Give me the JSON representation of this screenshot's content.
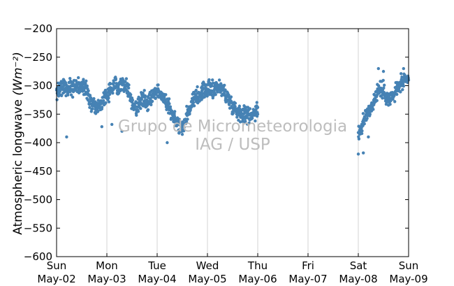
{
  "chart_data": {
    "type": "scatter",
    "ylabel": "Atmospheric longwave",
    "ylabel_unit": "(Wm⁻²)",
    "ylim": [
      -600,
      -200
    ],
    "yticks": [
      -200,
      -250,
      -300,
      -350,
      -400,
      -450,
      -500,
      -550,
      -600
    ],
    "x_range_days": [
      0,
      7
    ],
    "xticks": [
      {
        "day": "Sun",
        "date": "May-02"
      },
      {
        "day": "Mon",
        "date": "May-03"
      },
      {
        "day": "Tue",
        "date": "May-04"
      },
      {
        "day": "Wed",
        "date": "May-05"
      },
      {
        "day": "Thu",
        "date": "May-06"
      },
      {
        "day": "Fri",
        "date": "May-07"
      },
      {
        "day": "Sat",
        "date": "May-08"
      },
      {
        "day": "Sun",
        "date": "May-09"
      }
    ],
    "grid": "vertical",
    "marker_color": "#4682b4",
    "series": [
      {
        "x": [
          0.0,
          0.1,
          0.2,
          0.3,
          0.4,
          0.5,
          0.6,
          0.7,
          0.8,
          0.9,
          1.0,
          1.1,
          1.2,
          1.3,
          1.4,
          1.5,
          1.6,
          1.7,
          1.8,
          1.9,
          2.0,
          2.1,
          2.2,
          2.3,
          2.4,
          2.5,
          2.6,
          2.7,
          2.8,
          2.9,
          3.0,
          3.1,
          3.2,
          3.3,
          3.4,
          3.5,
          3.6,
          3.7,
          3.8,
          3.9,
          4.0
        ],
        "y": [
          -315,
          -300,
          -305,
          -300,
          -302,
          -300,
          -310,
          -335,
          -340,
          -330,
          -315,
          -305,
          -300,
          -295,
          -300,
          -330,
          -340,
          -320,
          -330,
          -318,
          -310,
          -318,
          -330,
          -350,
          -365,
          -375,
          -350,
          -330,
          -320,
          -310,
          -305,
          -310,
          -300,
          -308,
          -320,
          -335,
          -345,
          -348,
          -352,
          -350,
          -340
        ]
      },
      {
        "x": [
          6.0,
          6.1,
          6.2,
          6.3,
          6.4,
          6.5,
          6.6,
          6.7,
          6.8,
          6.9,
          7.0
        ],
        "y": [
          -385,
          -365,
          -345,
          -330,
          -305,
          -310,
          -325,
          -318,
          -300,
          -295,
          -288
        ]
      }
    ],
    "outliers": [
      [
        0.2,
        -390
      ],
      [
        0.9,
        -372
      ],
      [
        1.1,
        -368
      ],
      [
        1.3,
        -380
      ],
      [
        2.2,
        -400
      ],
      [
        2.8,
        -302
      ],
      [
        3.1,
        -290
      ],
      [
        4.0,
        -350
      ],
      [
        6.0,
        -420
      ],
      [
        6.1,
        -418
      ],
      [
        6.2,
        -390
      ],
      [
        6.4,
        -270
      ],
      [
        6.5,
        -275
      ],
      [
        6.9,
        -270
      ]
    ]
  },
  "watermark": {
    "line1": "Grupo de Micrometeorologia",
    "line2": "IAG / USP"
  }
}
